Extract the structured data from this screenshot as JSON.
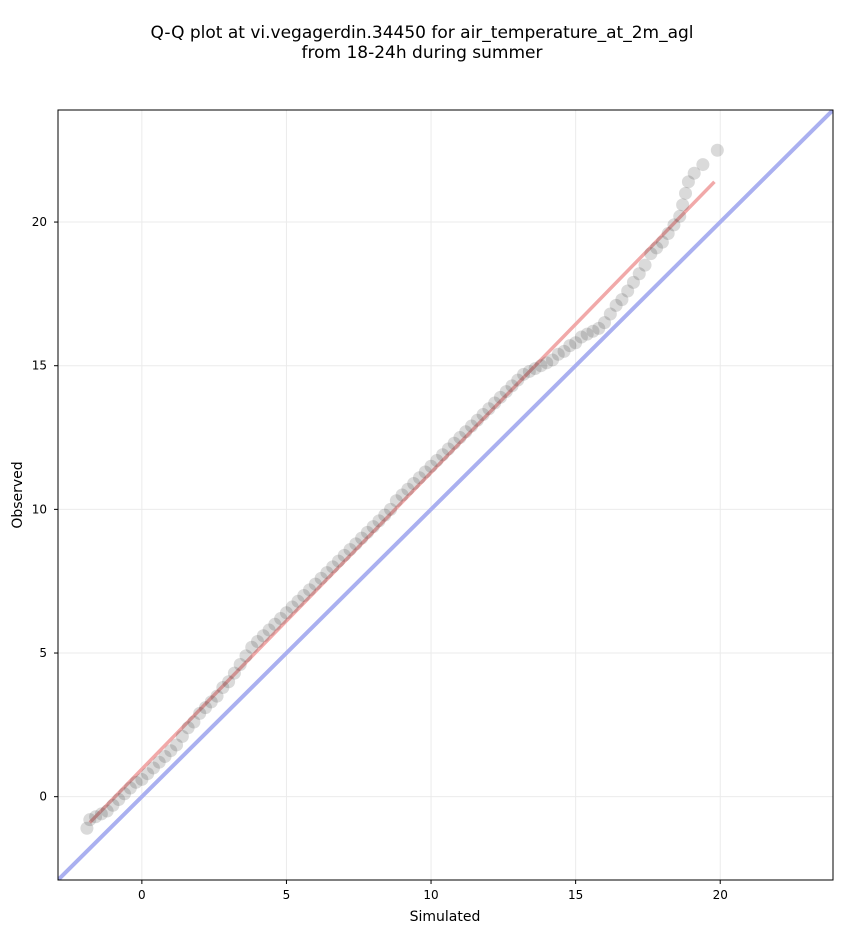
{
  "chart_data": {
    "type": "scatter",
    "title_lines": [
      "Q-Q plot at vi.vegagerdin.34450 for air_temperature_at_2m_agl",
      "from 18-24h during summer"
    ],
    "xlabel": "Simulated",
    "ylabel": "Observed",
    "xlim": [
      -2.9,
      23.9
    ],
    "ylim": [
      -2.9,
      23.9
    ],
    "xticks": [
      0,
      5,
      10,
      15,
      20
    ],
    "yticks": [
      0,
      5,
      10,
      15,
      20
    ],
    "grid": true,
    "colors": {
      "points": "#333333",
      "reference_line": "#aab0f0",
      "fit_line": "#f0a0a0",
      "grid": "#ebebeb"
    },
    "reference_line": {
      "from": [
        -2.9,
        -2.9
      ],
      "to": [
        23.9,
        23.9
      ]
    },
    "fit_line": {
      "from": [
        -1.8,
        -0.9
      ],
      "to": [
        19.8,
        21.4
      ]
    },
    "points": {
      "x": [
        -1.9,
        -1.8,
        -1.6,
        -1.4,
        -1.2,
        -1.0,
        -0.8,
        -0.6,
        -0.4,
        -0.2,
        0.0,
        0.2,
        0.4,
        0.6,
        0.8,
        1.0,
        1.2,
        1.4,
        1.6,
        1.8,
        2.0,
        2.2,
        2.4,
        2.6,
        2.8,
        3.0,
        3.2,
        3.4,
        3.6,
        3.8,
        4.0,
        4.2,
        4.4,
        4.6,
        4.8,
        5.0,
        5.2,
        5.4,
        5.6,
        5.8,
        6.0,
        6.2,
        6.4,
        6.6,
        6.8,
        7.0,
        7.2,
        7.4,
        7.6,
        7.8,
        8.0,
        8.2,
        8.4,
        8.6,
        8.8,
        9.0,
        9.2,
        9.4,
        9.6,
        9.8,
        10.0,
        10.2,
        10.4,
        10.6,
        10.8,
        11.0,
        11.2,
        11.4,
        11.6,
        11.8,
        12.0,
        12.2,
        12.4,
        12.6,
        12.8,
        13.0,
        13.2,
        13.4,
        13.6,
        13.8,
        14.0,
        14.2,
        14.4,
        14.6,
        14.8,
        15.0,
        15.2,
        15.4,
        15.6,
        15.8,
        16.0,
        16.2,
        16.4,
        16.6,
        16.8,
        17.0,
        17.2,
        17.4,
        17.6,
        17.8,
        18.0,
        18.2,
        18.4,
        18.6,
        18.7,
        18.8,
        18.9,
        19.1,
        19.4,
        19.9
      ],
      "y": [
        -1.1,
        -0.8,
        -0.7,
        -0.6,
        -0.5,
        -0.3,
        -0.1,
        0.1,
        0.3,
        0.5,
        0.6,
        0.8,
        1.0,
        1.2,
        1.4,
        1.6,
        1.8,
        2.1,
        2.4,
        2.6,
        2.9,
        3.1,
        3.3,
        3.5,
        3.8,
        4.0,
        4.3,
        4.6,
        4.9,
        5.2,
        5.4,
        5.6,
        5.8,
        6.0,
        6.2,
        6.4,
        6.6,
        6.8,
        7.0,
        7.2,
        7.4,
        7.6,
        7.8,
        8.0,
        8.2,
        8.4,
        8.6,
        8.8,
        9.0,
        9.2,
        9.4,
        9.6,
        9.8,
        10.0,
        10.3,
        10.5,
        10.7,
        10.9,
        11.1,
        11.3,
        11.5,
        11.7,
        11.9,
        12.1,
        12.3,
        12.5,
        12.7,
        12.9,
        13.1,
        13.3,
        13.5,
        13.7,
        13.9,
        14.1,
        14.3,
        14.5,
        14.7,
        14.8,
        14.9,
        15.0,
        15.1,
        15.2,
        15.4,
        15.5,
        15.7,
        15.8,
        16.0,
        16.1,
        16.2,
        16.3,
        16.5,
        16.8,
        17.1,
        17.3,
        17.6,
        17.9,
        18.2,
        18.5,
        18.9,
        19.1,
        19.3,
        19.6,
        19.9,
        20.2,
        20.6,
        21.0,
        21.4,
        21.7,
        22.0,
        22.5
      ]
    }
  }
}
